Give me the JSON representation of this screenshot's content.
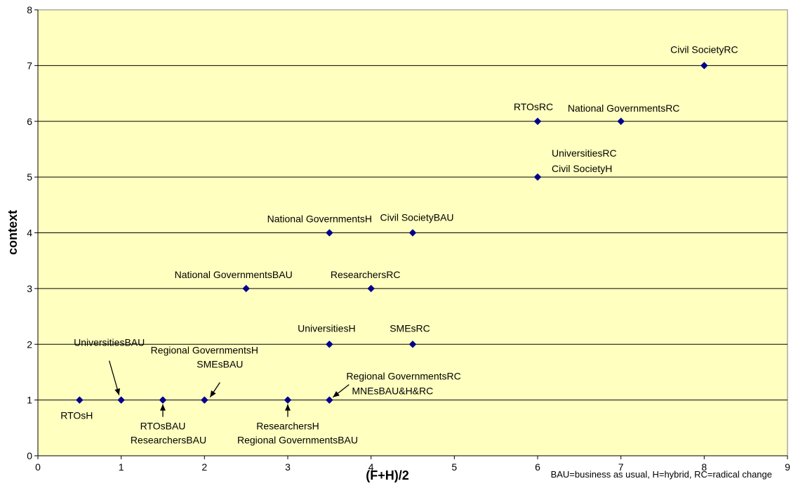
{
  "chart_data": {
    "type": "scatter",
    "xlabel": "(F+H)/2",
    "ylabel": "context",
    "xlim": [
      0,
      9
    ],
    "ylim": [
      0,
      8
    ],
    "x_ticks": [
      "0",
      "1",
      "2",
      "3",
      "4",
      "5",
      "6",
      "7",
      "8",
      "9"
    ],
    "y_ticks": [
      "0",
      "1",
      "2",
      "3",
      "4",
      "5",
      "6",
      "7",
      "8"
    ],
    "grid": "horizontal",
    "plot_background": "#ffffc0",
    "marker_color": "#00008b",
    "footnote": "BAU=business as usual, H=hybrid, RC=radical change",
    "points": [
      {
        "x": 0.5,
        "y": 1
      },
      {
        "x": 1,
        "y": 1
      },
      {
        "x": 1.5,
        "y": 1
      },
      {
        "x": 2,
        "y": 1
      },
      {
        "x": 3,
        "y": 1
      },
      {
        "x": 3.5,
        "y": 1
      },
      {
        "x": 3.5,
        "y": 2
      },
      {
        "x": 4.5,
        "y": 2
      },
      {
        "x": 2.5,
        "y": 3
      },
      {
        "x": 4,
        "y": 3
      },
      {
        "x": 3.5,
        "y": 4
      },
      {
        "x": 4.5,
        "y": 4
      },
      {
        "x": 6,
        "y": 5
      },
      {
        "x": 6,
        "y": 6
      },
      {
        "x": 7,
        "y": 6
      },
      {
        "x": 8,
        "y": 7
      }
    ],
    "annotations": [
      "RTOsH",
      "UniversitiesBAU",
      "RTOsBAU",
      "ResearchersBAU",
      "Regional GovernmentsH",
      "SMEsBAU",
      "ResearchersH",
      "Regional GovernmentsBAU",
      "Regional GovernmentsRC",
      "MNEsBAU&H&RC",
      "UniversitiesH",
      "SMEsRC",
      "National GovernmentsBAU",
      "ResearchersRC",
      "National GovernmentsH",
      "Civil SocietyBAU",
      "UniversitiesRC",
      "Civil SocietyH",
      "RTOsRC",
      "National GovernmentsRC",
      "Civil SocietyRC"
    ]
  }
}
